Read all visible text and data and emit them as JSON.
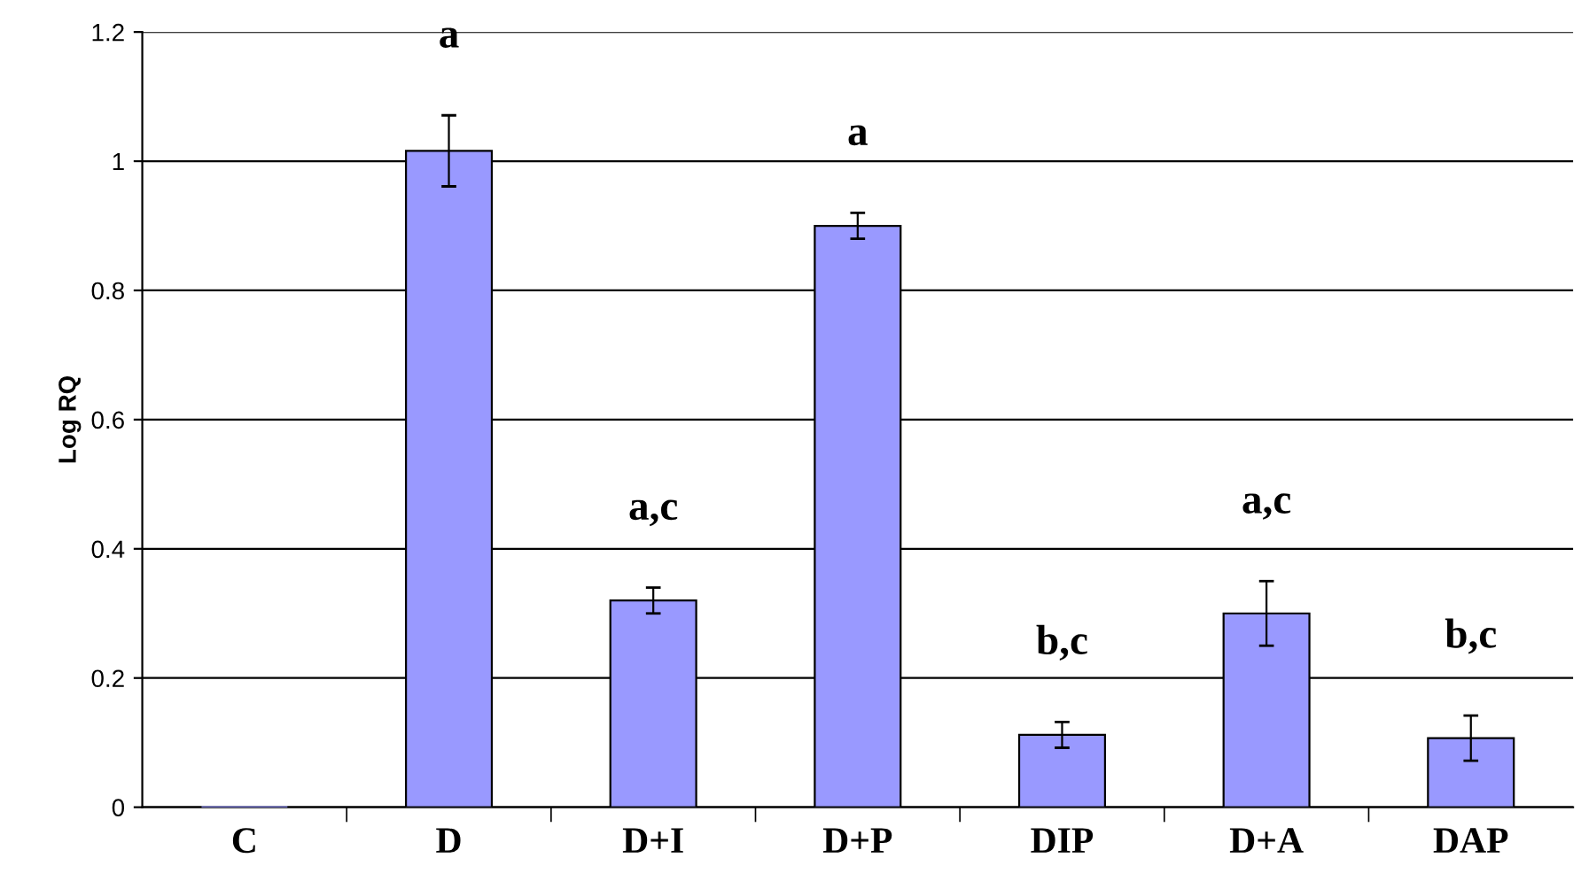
{
  "chart_data": {
    "type": "bar",
    "ylabel": "Log RQ",
    "categories": [
      "C",
      "D",
      "D+I",
      "D+P",
      "DIP",
      "D+A",
      "DAP"
    ],
    "values": [
      0,
      1.016,
      0.32,
      0.9,
      0.112,
      0.3,
      0.107
    ],
    "errors": [
      null,
      0.055,
      0.02,
      0.02,
      0.02,
      0.05,
      0.035
    ],
    "color": "#9999ff",
    "ylim": [
      0,
      1.2
    ],
    "yticks": [
      0,
      0.2,
      0.4,
      0.6,
      0.8,
      1,
      1.2
    ],
    "grid": "y",
    "annotations": [
      "a",
      "a,c",
      "a",
      "b,c",
      "a,c",
      "b,c"
    ]
  }
}
